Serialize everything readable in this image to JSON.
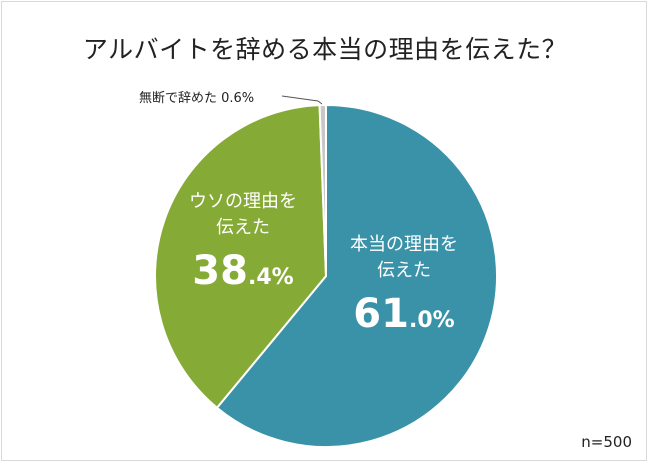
{
  "chart_data": {
    "type": "pie",
    "title": "アルバイトを辞める本当の理由を伝えた？",
    "sample_size": "n=500",
    "slices": [
      {
        "label": "本当の理由を伝えた",
        "value": 61.0,
        "color": "#3a92a8"
      },
      {
        "label": "ウソの理由を伝えた",
        "value": 38.4,
        "color": "#86aa36"
      },
      {
        "label": "無断で辞めた",
        "value": 0.6,
        "color": "#c8c8c8"
      }
    ],
    "start_angle_deg": 0,
    "direction": "clockwise",
    "legend": "none (inline labels)"
  },
  "labels": {
    "honest": {
      "line1": "本当の理由を",
      "line2": "伝えた",
      "pct_int": "61",
      "pct_dec": ".0%"
    },
    "lie": {
      "line1": "ウソの理由を",
      "line2": "伝えた",
      "pct_int": "38",
      "pct_dec": ".4%"
    },
    "quit": {
      "text": "無断で辞めた 0.6%"
    }
  },
  "footer": {
    "n": "n=500"
  }
}
